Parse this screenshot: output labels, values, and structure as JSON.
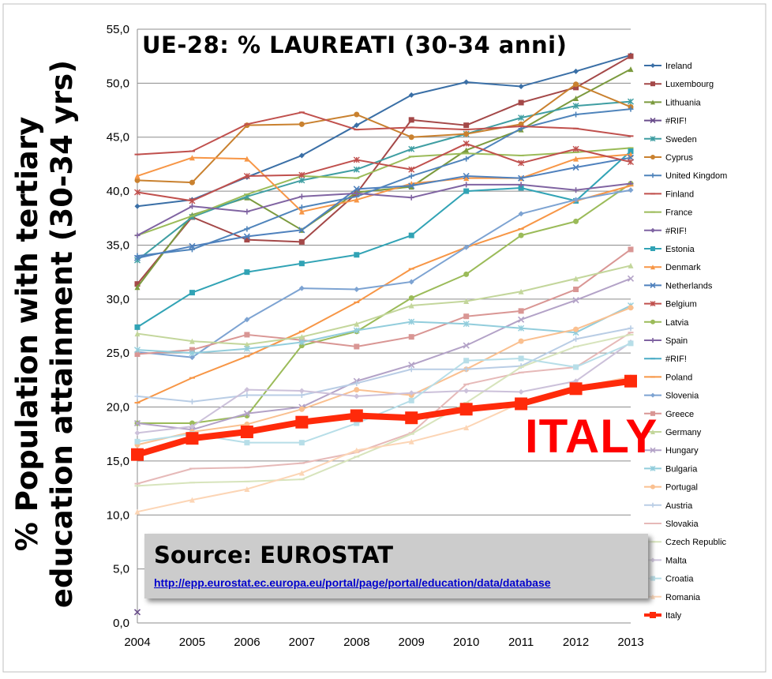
{
  "title": "UE-28: % LAUREATI (30-34 anni)",
  "ylabel": "% Population with tertiary education attainment (30-34 yrs)",
  "callout": "ITALY",
  "source": {
    "title": "Source: EUROSTAT",
    "link": "http://epp.eurostat.ec.europa.eu/portal/page/portal/education/data/database"
  },
  "chart_data": {
    "type": "line",
    "title": "UE-28: % LAUREATI (30-34 anni)",
    "xlabel": "",
    "ylabel": "% Population with tertiary education attainment (30-34 yrs)",
    "x": [
      "2004",
      "2005",
      "2006",
      "2007",
      "2008",
      "2009",
      "2010",
      "2011",
      "2012",
      "2013"
    ],
    "ylim": [
      0,
      55
    ],
    "ytick_labels": [
      "0,0",
      "5,0",
      "10,0",
      "15,0",
      "20,0",
      "25,0",
      "30,0",
      "35,0",
      "40,0",
      "45,0",
      "50,0",
      "55,0"
    ],
    "grid": true,
    "legend_position": "right",
    "series": [
      {
        "name": "Ireland",
        "color": "#3a6fa6",
        "marker": "diamond",
        "values": [
          38.6,
          39.2,
          41.3,
          43.3,
          46.1,
          48.9,
          50.1,
          49.7,
          51.1,
          52.6
        ]
      },
      {
        "name": "Luxembourg",
        "color": "#a44848",
        "marker": "square",
        "values": [
          31.4,
          37.6,
          35.5,
          35.3,
          39.8,
          46.6,
          46.1,
          48.2,
          49.6,
          52.5
        ]
      },
      {
        "name": "Lithuania",
        "color": "#7b9a3e",
        "marker": "triangle",
        "values": [
          31.1,
          37.8,
          39.4,
          36.4,
          39.9,
          40.4,
          43.8,
          45.7,
          48.6,
          51.3
        ]
      },
      {
        "name": "#RIF!",
        "color": "#6a4e8c",
        "marker": "x",
        "values": [
          1.0,
          null,
          null,
          null,
          null,
          null,
          null,
          null,
          null,
          null
        ]
      },
      {
        "name": "Sweden",
        "color": "#3f9ea2",
        "marker": "star",
        "values": [
          33.6,
          37.6,
          39.5,
          41.0,
          42.0,
          43.9,
          45.3,
          46.8,
          47.9,
          48.3
        ]
      },
      {
        "name": "Cyprus",
        "color": "#c9812f",
        "marker": "circle",
        "values": [
          41.0,
          40.8,
          46.1,
          46.2,
          47.1,
          45.0,
          45.3,
          46.2,
          49.9,
          47.8
        ]
      },
      {
        "name": "United Kingdom",
        "color": "#4f84bb",
        "marker": "plus",
        "values": [
          34.0,
          34.6,
          36.5,
          38.5,
          39.5,
          41.4,
          43.0,
          45.8,
          47.1,
          47.6
        ]
      },
      {
        "name": "Finland",
        "color": "#c0504d",
        "marker": "dash",
        "values": [
          43.4,
          43.7,
          46.2,
          47.3,
          45.7,
          45.9,
          45.7,
          46.0,
          45.8,
          45.1
        ]
      },
      {
        "name": "France",
        "color": "#9bbb59",
        "marker": "dash",
        "values": [
          35.9,
          37.7,
          39.7,
          41.4,
          41.2,
          43.2,
          43.5,
          43.3,
          43.6,
          44.0
        ]
      },
      {
        "name": "#RIF!",
        "color": "#7f63a2",
        "marker": "diamond",
        "values": [
          null,
          null,
          null,
          null,
          null,
          null,
          null,
          null,
          null,
          null
        ]
      },
      {
        "name": "Estonia",
        "color": "#31a3b5",
        "marker": "square",
        "values": [
          27.4,
          30.6,
          32.5,
          33.3,
          34.1,
          35.9,
          40.0,
          40.3,
          39.1,
          43.7
        ]
      },
      {
        "name": "Denmark",
        "color": "#f79646",
        "marker": "triangle",
        "values": [
          41.4,
          43.1,
          43.0,
          38.1,
          39.2,
          40.7,
          41.2,
          41.2,
          43.0,
          43.4
        ]
      },
      {
        "name": "Netherlands",
        "color": "#4f81bd",
        "marker": "x",
        "values": [
          33.8,
          34.9,
          35.8,
          36.4,
          40.2,
          40.5,
          41.4,
          41.2,
          42.2,
          43.1
        ]
      },
      {
        "name": "Belgium",
        "color": "#c0504d",
        "marker": "star",
        "values": [
          39.9,
          39.1,
          41.4,
          41.5,
          42.9,
          42.0,
          44.4,
          42.6,
          43.9,
          42.7
        ]
      },
      {
        "name": "Latvia",
        "color": "#9bbb59",
        "marker": "circle",
        "values": [
          18.5,
          18.5,
          19.2,
          25.7,
          27.0,
          30.1,
          32.3,
          35.9,
          37.2,
          40.7
        ]
      },
      {
        "name": "Spain",
        "color": "#8064a2",
        "marker": "plus",
        "values": [
          35.9,
          38.6,
          38.1,
          39.5,
          39.8,
          39.4,
          40.6,
          40.6,
          40.1,
          40.7
        ]
      },
      {
        "name": "#RIF!",
        "color": "#4bacc6",
        "marker": "dash",
        "values": [
          null,
          null,
          null,
          null,
          null,
          null,
          null,
          null,
          null,
          null
        ]
      },
      {
        "name": "Poland",
        "color": "#f79646",
        "marker": "dash",
        "values": [
          20.4,
          22.7,
          24.7,
          27.0,
          29.7,
          32.8,
          34.8,
          36.5,
          39.1,
          40.5
        ]
      },
      {
        "name": "Slovenia",
        "color": "#7da3d2",
        "marker": "diamond",
        "values": [
          25.1,
          24.6,
          28.1,
          31.0,
          30.9,
          31.6,
          34.8,
          37.9,
          39.2,
          40.1
        ]
      },
      {
        "name": "Greece",
        "color": "#d99694",
        "marker": "square",
        "values": [
          24.9,
          25.3,
          26.7,
          26.2,
          25.6,
          26.5,
          28.4,
          28.9,
          30.9,
          34.6
        ]
      },
      {
        "name": "Germany",
        "color": "#c3d69b",
        "marker": "triangle",
        "values": [
          26.8,
          26.1,
          25.8,
          26.5,
          27.7,
          29.4,
          29.8,
          30.7,
          31.9,
          33.1
        ]
      },
      {
        "name": "Hungary",
        "color": "#b3a2c7",
        "marker": "x",
        "values": [
          18.5,
          17.9,
          19.4,
          20.0,
          22.4,
          23.9,
          25.7,
          28.1,
          29.9,
          31.9
        ]
      },
      {
        "name": "Bulgaria",
        "color": "#92cddc",
        "marker": "star",
        "values": [
          25.3,
          25.0,
          25.4,
          26.0,
          27.1,
          27.9,
          27.7,
          27.3,
          26.9,
          29.4
        ]
      },
      {
        "name": "Portugal",
        "color": "#fac090",
        "marker": "circle",
        "values": [
          16.5,
          17.7,
          18.4,
          19.8,
          21.6,
          21.1,
          23.5,
          26.1,
          27.2,
          29.2
        ]
      },
      {
        "name": "Austria",
        "color": "#b9cde5",
        "marker": "plus",
        "values": [
          21.0,
          20.5,
          21.1,
          21.1,
          22.2,
          23.5,
          23.5,
          23.8,
          26.3,
          27.3
        ]
      },
      {
        "name": "Slovakia",
        "color": "#e6b9b8",
        "marker": "dash",
        "values": [
          12.9,
          14.3,
          14.4,
          14.8,
          15.8,
          17.6,
          22.1,
          23.2,
          23.7,
          26.9
        ]
      },
      {
        "name": "Czech Republic",
        "color": "#d7e4bc",
        "marker": "dash",
        "values": [
          12.7,
          13.0,
          13.1,
          13.3,
          15.4,
          17.5,
          20.4,
          23.7,
          25.6,
          26.7
        ]
      },
      {
        "name": "Malta",
        "color": "#ccc1da",
        "marker": "diamond",
        "values": [
          17.6,
          18.2,
          21.6,
          21.5,
          21.0,
          21.3,
          21.5,
          21.4,
          22.4,
          26.0
        ]
      },
      {
        "name": "Croatia",
        "color": "#b7dee8",
        "marker": "square",
        "values": [
          16.8,
          17.5,
          16.7,
          16.7,
          18.5,
          20.6,
          24.3,
          24.5,
          23.7,
          25.9
        ]
      },
      {
        "name": "Romania",
        "color": "#fcd5b5",
        "marker": "triangle",
        "values": [
          10.3,
          11.4,
          12.4,
          13.9,
          16.0,
          16.8,
          18.1,
          20.4,
          21.8,
          22.8
        ]
      },
      {
        "name": "Italy",
        "color": "#ff2a0a",
        "marker": "square",
        "bold": true,
        "values": [
          15.6,
          17.1,
          17.7,
          18.6,
          19.2,
          19.0,
          19.8,
          20.3,
          21.7,
          22.4
        ]
      }
    ]
  }
}
